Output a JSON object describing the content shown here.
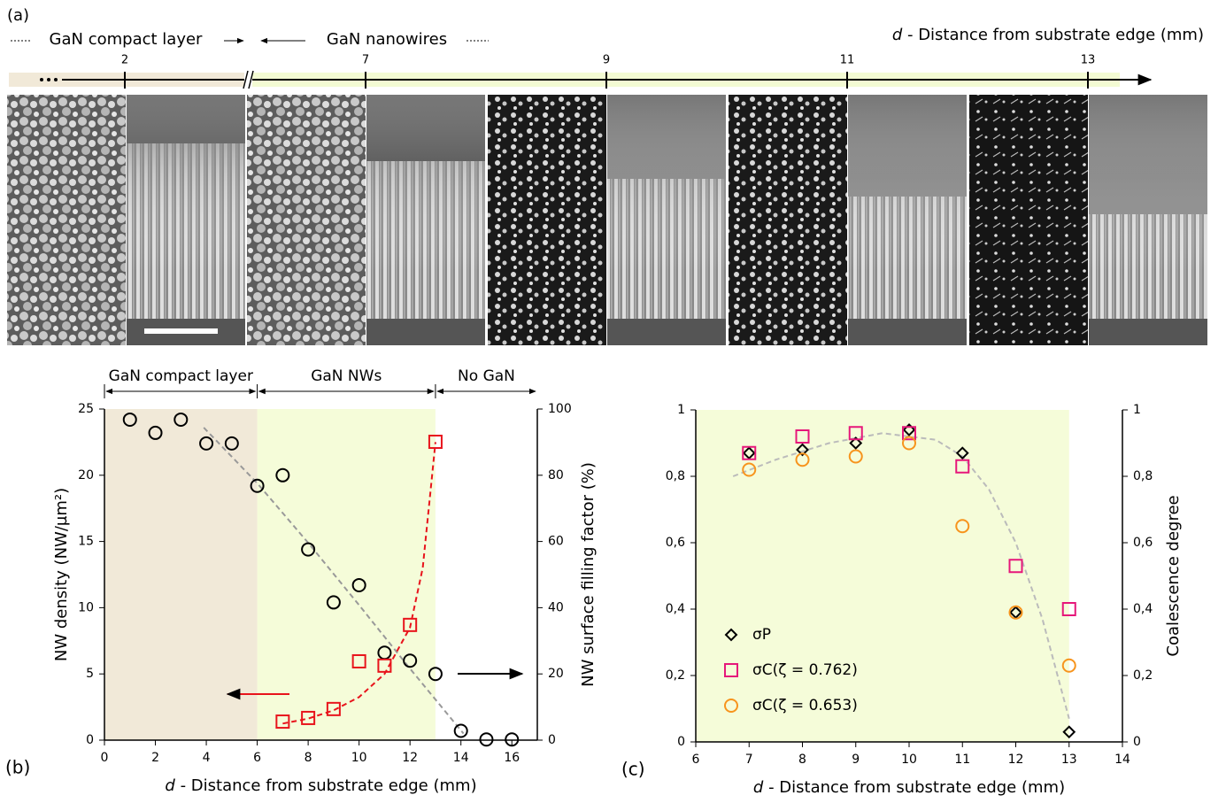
{
  "figure_a": {
    "panel_label": "(a)",
    "left_label": "GaN compact layer",
    "right_label": "GaN nanowires",
    "axis_var": "d",
    "axis_title": " - Distance from substrate edge (mm)",
    "ticks": [
      2,
      7,
      9,
      11,
      13
    ]
  },
  "chart_data": [
    {
      "type": "scatter",
      "panel_label": "(b)",
      "xlabel_var": "d",
      "xlabel": " - Distance from substrate edge (mm)",
      "ylabel": "NW density (NW/µm²)",
      "y2label": "NW surface filling factor (%)",
      "xlim": [
        0,
        17
      ],
      "xticks": [
        0,
        2,
        4,
        6,
        8,
        10,
        12,
        14,
        16
      ],
      "ylim": [
        0,
        25
      ],
      "yticks": [
        0,
        5,
        10,
        15,
        20,
        25
      ],
      "y2lim": [
        0,
        100
      ],
      "y2ticks": [
        0,
        20,
        40,
        60,
        80,
        100
      ],
      "regions": [
        {
          "label": "GaN compact layer",
          "from": 0,
          "to": 6,
          "color": "#f1e9d8"
        },
        {
          "label": "GaN NWs",
          "from": 6,
          "to": 13,
          "color": "#f5fcd9"
        },
        {
          "label": "No GaN",
          "from": 13,
          "to": 17,
          "color": "#ffffff"
        }
      ],
      "series": [
        {
          "marker": "circle",
          "color": "#000000",
          "x": [
            1,
            2,
            3,
            4,
            5,
            6,
            7,
            8,
            9,
            10,
            11,
            12,
            13,
            14,
            15,
            16
          ],
          "values": [
            24.2,
            23.2,
            24.2,
            22.4,
            22.4,
            19.2,
            20.0,
            14.4,
            10.4,
            11.7,
            6.6,
            6.0,
            5.0,
            0.7,
            0.05,
            0.05
          ]
        },
        {
          "marker": "square",
          "color": "#e8141c",
          "axis": "y2",
          "x": [
            7,
            8,
            9,
            10,
            11,
            12,
            13
          ],
          "values": [
            5.6,
            6.7,
            9.4,
            23.8,
            22.5,
            34.8,
            90.1
          ]
        }
      ],
      "fits": [
        {
          "color": "#999999",
          "x": [
            3.9,
            6,
            8,
            10,
            12,
            14.1
          ],
          "values": [
            23.6,
            19.4,
            14.9,
            10.2,
            5.4,
            0.5
          ]
        },
        {
          "color": "#e8141c",
          "axis": "y2",
          "x": [
            7,
            8,
            9,
            10,
            11,
            12,
            12.5,
            13
          ],
          "values": [
            5,
            6.5,
            9,
            13,
            20,
            34,
            52,
            90
          ]
        }
      ]
    },
    {
      "type": "scatter",
      "panel_label": "(c)",
      "xlabel_var": "d",
      "xlabel": " - Distance from substrate edge (mm)",
      "y2label": "Coalescence degree",
      "xlim": [
        6,
        14
      ],
      "xticks": [
        6,
        7,
        8,
        9,
        10,
        11,
        12,
        13,
        14
      ],
      "ylim": [
        0,
        1
      ],
      "yticks": [
        0,
        {
          "value": 0.2,
          "label": "0,2"
        },
        {
          "value": 0.4,
          "label": "0,4"
        },
        {
          "value": 0.6,
          "label": "0,6"
        },
        {
          "value": 0.8,
          "label": "0,8"
        },
        1
      ],
      "y2lim": [
        0,
        1
      ],
      "y2ticks": [
        0,
        {
          "value": 0.2,
          "label": "0,2"
        },
        {
          "value": 0.4,
          "label": "0,4"
        },
        {
          "value": 0.6,
          "label": "0,6"
        },
        {
          "value": 0.8,
          "label": "0,8"
        },
        1
      ],
      "regions": [
        {
          "from": 6,
          "to": 13,
          "color": "#f5fcd9"
        }
      ],
      "legend": "lower left",
      "series": [
        {
          "name": "σP",
          "marker": "diamond",
          "color": "#000000",
          "x": [
            7,
            8,
            9,
            10,
            11,
            12,
            13
          ],
          "values": [
            0.87,
            0.88,
            0.9,
            0.94,
            0.87,
            0.39,
            0.03
          ]
        },
        {
          "name": "σC(ζ = 0.762)",
          "marker": "square",
          "color": "#e6177a",
          "x": [
            7,
            8,
            9,
            10,
            11,
            12,
            13
          ],
          "values": [
            0.87,
            0.92,
            0.93,
            0.93,
            0.83,
            0.53,
            0.4
          ]
        },
        {
          "name": "σC(ζ = 0.653)",
          "marker": "circle",
          "color": "#f7941d",
          "x": [
            7,
            8,
            9,
            10,
            11,
            12,
            13
          ],
          "values": [
            0.82,
            0.85,
            0.86,
            0.9,
            0.65,
            0.39,
            0.23
          ]
        }
      ],
      "fits": [
        {
          "color": "#bbbbbb",
          "x": [
            6.7,
            7.5,
            8.5,
            9.5,
            10.5,
            11,
            11.5,
            12,
            12.5,
            13
          ],
          "values": [
            0.8,
            0.85,
            0.9,
            0.93,
            0.91,
            0.86,
            0.76,
            0.6,
            0.37,
            0.07
          ]
        }
      ]
    }
  ]
}
